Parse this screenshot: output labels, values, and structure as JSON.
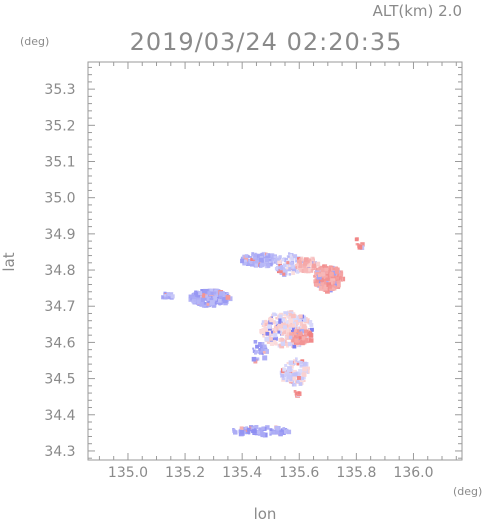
{
  "header": {
    "altitude_label": "ALT(km)  2.0",
    "timestamp": "2019/03/24  02:20:35"
  },
  "chart_data": {
    "type": "heatmap",
    "title": "2019/03/24  02:20:35",
    "subtitle": "ALT(km)  2.0",
    "xlabel": "lon",
    "ylabel": "lat",
    "x_unit": "(deg)",
    "y_unit": "(deg)",
    "xlim": [
      134.86,
      136.17
    ],
    "ylim": [
      34.275,
      35.375
    ],
    "x_ticks": [
      135.0,
      135.2,
      135.4,
      135.6,
      135.8,
      136.0
    ],
    "x_tick_labels": [
      "135.0",
      "135.2",
      "135.4",
      "135.6",
      "135.8",
      "136.0"
    ],
    "y_ticks": [
      34.3,
      34.4,
      34.5,
      34.6,
      34.7,
      34.8,
      34.9,
      35.0,
      35.1,
      35.2,
      35.3
    ],
    "y_tick_labels": [
      "34.3",
      "34.4",
      "34.5",
      "34.6",
      "34.7",
      "34.8",
      "34.9",
      "35.0",
      "35.1",
      "35.2",
      "35.3"
    ],
    "grid": false,
    "colors": {
      "negative": "#7f7ff0",
      "positive": "#f07f7f",
      "frame": "#9a9a9a",
      "text": "#8a8a8a"
    },
    "regions": [
      {
        "id": "west-blob",
        "lon": 135.28,
        "lat": 34.728,
        "rlon": 0.07,
        "rlat": 0.022,
        "value": -0.55,
        "n": 200
      },
      {
        "id": "west-tail",
        "lon": 135.13,
        "lat": 34.733,
        "rlon": 0.02,
        "rlat": 0.008,
        "value": -0.5,
        "n": 20
      },
      {
        "id": "northwest-band",
        "lon": 135.46,
        "lat": 34.833,
        "rlon": 0.07,
        "rlat": 0.018,
        "value": -0.45,
        "n": 140
      },
      {
        "id": "north-center",
        "lon": 135.56,
        "lat": 34.82,
        "rlon": 0.05,
        "rlat": 0.03,
        "value": -0.2,
        "n": 80
      },
      {
        "id": "northeast-red",
        "lon": 135.695,
        "lat": 34.782,
        "rlon": 0.05,
        "rlat": 0.035,
        "value": 0.65,
        "n": 260
      },
      {
        "id": "northeast-red-edge",
        "lon": 135.62,
        "lat": 34.82,
        "rlon": 0.04,
        "rlat": 0.02,
        "value": 0.4,
        "n": 60
      },
      {
        "id": "northeast-spots",
        "lon": 135.8,
        "lat": 34.88,
        "rlon": 0.02,
        "rlat": 0.015,
        "value": 0.7,
        "n": 10
      },
      {
        "id": "central-mix",
        "lon": 135.55,
        "lat": 34.64,
        "rlon": 0.09,
        "rlat": 0.05,
        "value": 0.1,
        "n": 260
      },
      {
        "id": "central-red",
        "lon": 135.6,
        "lat": 34.62,
        "rlon": 0.04,
        "rlat": 0.02,
        "value": 0.75,
        "n": 60
      },
      {
        "id": "south-mix",
        "lon": 135.58,
        "lat": 34.52,
        "rlon": 0.05,
        "rlat": 0.04,
        "value": -0.1,
        "n": 90
      },
      {
        "id": "south-red-dot",
        "lon": 135.586,
        "lat": 34.465,
        "rlon": 0.008,
        "rlat": 0.006,
        "value": 0.95,
        "n": 8
      },
      {
        "id": "southern-streak",
        "lon": 135.46,
        "lat": 34.36,
        "rlon": 0.1,
        "rlat": 0.012,
        "value": -0.6,
        "n": 90
      },
      {
        "id": "lower-left-bits",
        "lon": 135.45,
        "lat": 34.58,
        "rlon": 0.03,
        "rlat": 0.03,
        "value": -0.6,
        "n": 25
      }
    ]
  }
}
